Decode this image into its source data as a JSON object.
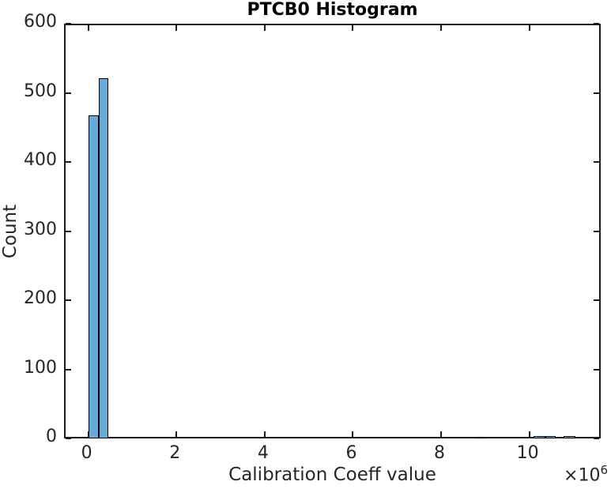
{
  "figure": {
    "title": "PTCB0 Histogram",
    "xlabel": "Calibration Coeff value",
    "ylabel": "Count",
    "x_multiplier_base": "×10",
    "x_multiplier_exponent": "6"
  },
  "chart_data": {
    "type": "bar",
    "subtype": "histogram",
    "title": "PTCB0 Histogram",
    "xlabel": "Calibration Coeff value",
    "ylabel": "Count",
    "x_multiplier_label": "×10⁶",
    "xlim": [
      -550000,
      11620000
    ],
    "ylim": [
      0,
      600
    ],
    "grid": false,
    "legend": null,
    "x_ticks": [
      0,
      2000000,
      4000000,
      6000000,
      8000000,
      10000000
    ],
    "x_tick_labels": [
      "0",
      "2",
      "4",
      "6",
      "8",
      "10"
    ],
    "y_ticks": [
      0,
      100,
      200,
      300,
      400,
      500,
      600
    ],
    "y_tick_labels": [
      "0",
      "100",
      "200",
      "300",
      "400",
      "500",
      "600"
    ],
    "bins": [
      {
        "x0": 0,
        "x1": 230000,
        "count": 467
      },
      {
        "x0": 230000,
        "x1": 450000,
        "count": 521
      },
      {
        "x0": 8770000,
        "x1": 9030000,
        "count": 2
      },
      {
        "x0": 10090000,
        "x1": 10360000,
        "count": 4
      },
      {
        "x0": 10360000,
        "x1": 10600000,
        "count": 4
      },
      {
        "x0": 10780000,
        "x1": 11050000,
        "count": 4
      }
    ],
    "colors": {
      "bar_fill": "#66AAD7",
      "bar_edge": "#000000",
      "axis": "#1A1A1A",
      "tick_text": "#262626",
      "title_text": "#000000"
    }
  }
}
